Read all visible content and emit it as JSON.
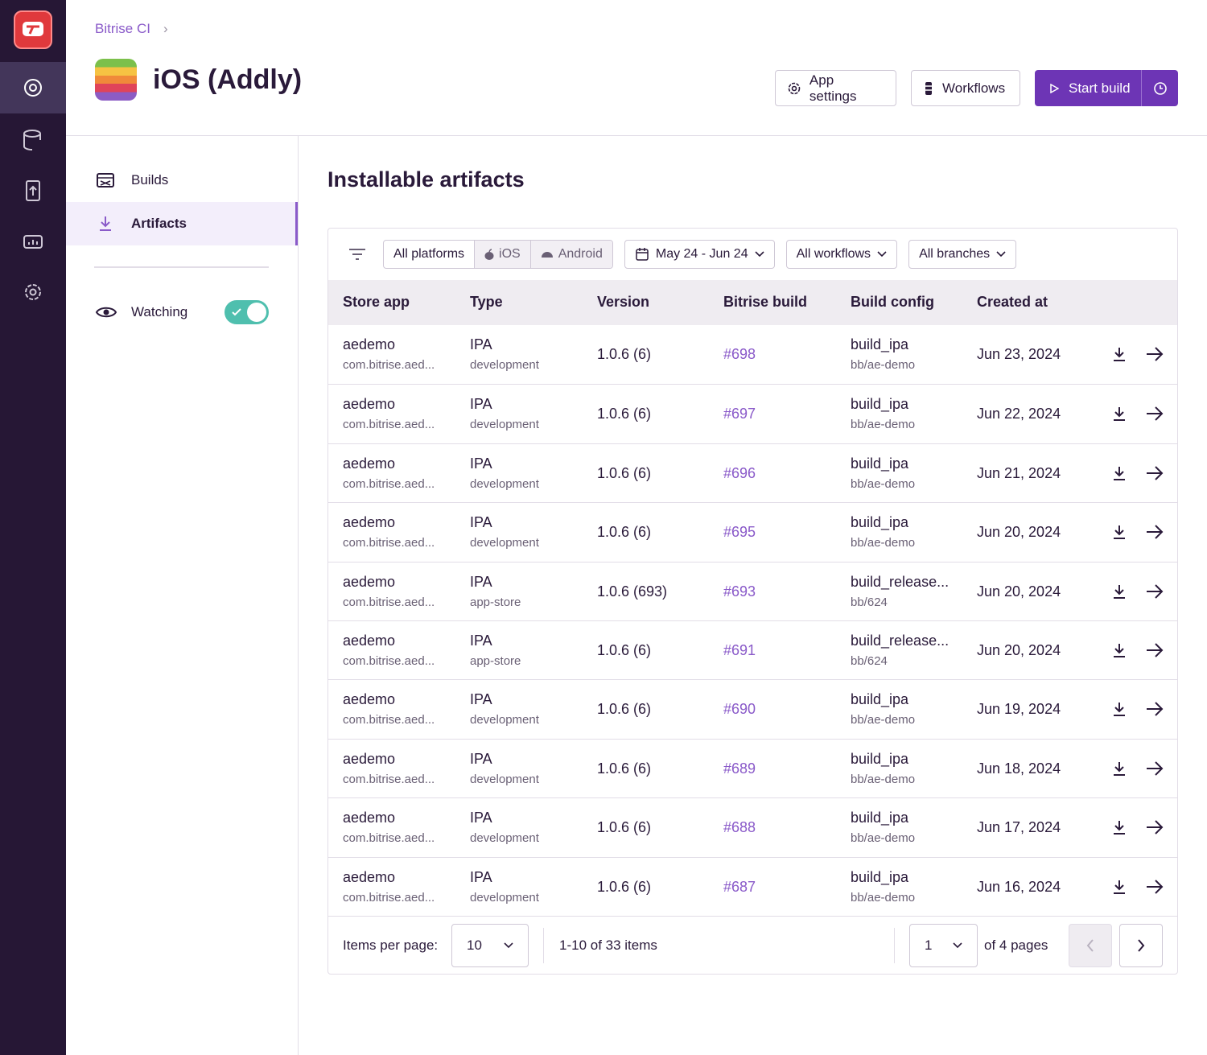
{
  "breadcrumb": "Bitrise CI",
  "app_title": "iOS (Addly)",
  "buttons": {
    "app_settings": "App settings",
    "workflows": "Workflows",
    "start_build": "Start build"
  },
  "nav": [
    "Builds",
    "Artifacts"
  ],
  "watching": "Watching",
  "section_title": "Installable artifacts",
  "filters": {
    "platforms": [
      "All platforms",
      "iOS",
      "Android"
    ],
    "date": "May 24 - Jun 24",
    "workflows": "All workflows",
    "branches": "All branches"
  },
  "table": {
    "headers": [
      "Store app",
      "Type",
      "Version",
      "Bitrise build",
      "Build config",
      "Created at"
    ],
    "rows": [
      [
        "aedemo",
        "com.bitrise.aed...",
        "IPA",
        "development",
        "1.0.6 (6)",
        "#698",
        "build_ipa",
        "bb/ae-demo",
        "Jun 23, 2024"
      ],
      [
        "aedemo",
        "com.bitrise.aed...",
        "IPA",
        "development",
        "1.0.6 (6)",
        "#697",
        "build_ipa",
        "bb/ae-demo",
        "Jun 22, 2024"
      ],
      [
        "aedemo",
        "com.bitrise.aed...",
        "IPA",
        "development",
        "1.0.6 (6)",
        "#696",
        "build_ipa",
        "bb/ae-demo",
        "Jun 21, 2024"
      ],
      [
        "aedemo",
        "com.bitrise.aed...",
        "IPA",
        "development",
        "1.0.6 (6)",
        "#695",
        "build_ipa",
        "bb/ae-demo",
        "Jun 20, 2024"
      ],
      [
        "aedemo",
        "com.bitrise.aed...",
        "IPA",
        "app-store",
        "1.0.6 (693)",
        "#693",
        "build_release...",
        "bb/624",
        "Jun 20, 2024"
      ],
      [
        "aedemo",
        "com.bitrise.aed...",
        "IPA",
        "app-store",
        "1.0.6 (6)",
        "#691",
        "build_release...",
        "bb/624",
        "Jun 20, 2024"
      ],
      [
        "aedemo",
        "com.bitrise.aed...",
        "IPA",
        "development",
        "1.0.6 (6)",
        "#690",
        "build_ipa",
        "bb/ae-demo",
        "Jun 19, 2024"
      ],
      [
        "aedemo",
        "com.bitrise.aed...",
        "IPA",
        "development",
        "1.0.6 (6)",
        "#689",
        "build_ipa",
        "bb/ae-demo",
        "Jun 18, 2024"
      ],
      [
        "aedemo",
        "com.bitrise.aed...",
        "IPA",
        "development",
        "1.0.6 (6)",
        "#688",
        "build_ipa",
        "bb/ae-demo",
        "Jun 17, 2024"
      ],
      [
        "aedemo",
        "com.bitrise.aed...",
        "IPA",
        "development",
        "1.0.6 (6)",
        "#687",
        "build_ipa",
        "bb/ae-demo",
        "Jun 16, 2024"
      ]
    ]
  },
  "pagination": {
    "items_per_page_label": "Items per page:",
    "items_per_page": 10,
    "range": "1-10 of 33 items",
    "page": 1,
    "of_pages": "of 4 pages"
  }
}
